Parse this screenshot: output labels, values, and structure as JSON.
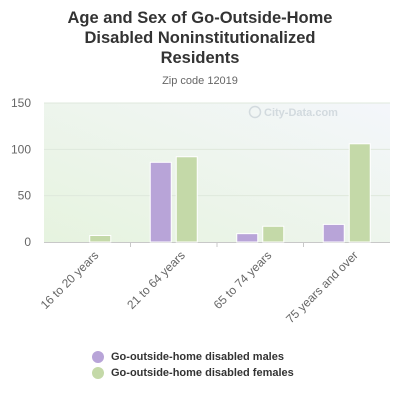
{
  "chart_data": {
    "type": "bar",
    "title_lines": [
      "Age and Sex of Go-Outside-Home",
      "Disabled Noninstitutionalized",
      "Residents"
    ],
    "subtitle": "Zip code 12019",
    "categories": [
      "16 to 20 years",
      "21 to 64 years",
      "65 to 74 years",
      "75 years and over"
    ],
    "series": [
      {
        "name": "Go-outside-home disabled males",
        "color": "#b8a4d8",
        "values": [
          0,
          86,
          9,
          19
        ]
      },
      {
        "name": "Go-outside-home disabled females",
        "color": "#c4d9a8",
        "values": [
          7,
          92,
          17,
          106
        ]
      }
    ],
    "yticks": [
      0,
      50,
      100,
      150
    ],
    "ylim": [
      0,
      150
    ],
    "grid": true,
    "legend_position": "bottom",
    "watermark": "City-Data.com"
  }
}
